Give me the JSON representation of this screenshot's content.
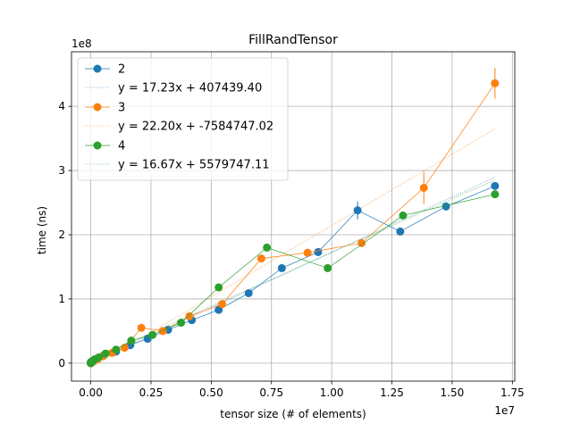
{
  "chart_data": {
    "type": "line",
    "title": "FillRandTensor",
    "xlabel": "tensor size (# of elements)",
    "ylabel": "time (ns)",
    "x_scale_label": "1e7",
    "y_scale_label": "1e8",
    "xlim": [
      -800000,
      17600000
    ],
    "ylim": [
      -28000000,
      485000000
    ],
    "x_ticks": [
      0,
      2500000,
      5000000,
      7500000,
      10000000,
      12500000,
      15000000,
      17500000
    ],
    "x_tick_labels": [
      "0.00",
      "0.25",
      "0.50",
      "0.75",
      "1.00",
      "1.25",
      "1.50",
      "1.75"
    ],
    "y_ticks": [
      0,
      100000000,
      200000000,
      300000000,
      400000000
    ],
    "y_tick_labels": [
      "0",
      "1",
      "2",
      "3",
      "4"
    ],
    "grid": true,
    "legend_position": "top-left",
    "series": [
      {
        "name": "2",
        "color": "#1f77b4",
        "fit_label": "y = 17.23x + 407439.40",
        "fit": {
          "slope": 17.23,
          "intercept": 407439.4
        },
        "x": [
          4,
          16,
          64,
          256,
          1024,
          4096,
          16384,
          65536,
          262144,
          524288,
          1048576,
          1638400,
          2359296,
          3211264,
          4194304,
          5308416,
          6553600,
          7929856,
          9437184,
          11075584,
          12845056,
          14745600,
          16777216
        ],
        "y": [
          100000,
          200000,
          250000,
          500000,
          1000000,
          1500000,
          2000000,
          3000000,
          7000000,
          12000000,
          18000000,
          28000000,
          38000000,
          52000000,
          67000000,
          83000000,
          109000000,
          148000000,
          173000000,
          238000000,
          205000000,
          244000000,
          276000000
        ],
        "err": [
          0,
          0,
          0,
          0,
          0,
          0,
          0,
          0,
          0,
          0,
          0,
          0,
          0,
          0,
          0,
          0,
          0,
          0,
          0,
          14000000,
          0,
          0,
          0
        ]
      },
      {
        "name": "3",
        "color": "#ff7f0e",
        "fit_label": "y = 22.20x + -7584747.02",
        "fit": {
          "slope": 22.2,
          "intercept": -7584747.02
        },
        "x": [
          27,
          512,
          4096,
          32768,
          110592,
          262144,
          512000,
          884736,
          1404928,
          2097152,
          2985984,
          4096000,
          5451776,
          7077888,
          8998912,
          11239424,
          13824000,
          16777216
        ],
        "y": [
          100000,
          200000,
          500000,
          1500000,
          3000000,
          6000000,
          11000000,
          16000000,
          24000000,
          55000000,
          50000000,
          73000000,
          92000000,
          163000000,
          172000000,
          187000000,
          273000000,
          436000000
        ],
        "err": [
          0,
          0,
          0,
          0,
          0,
          0,
          0,
          0,
          0,
          0,
          0,
          0,
          0,
          0,
          0,
          0,
          25000000,
          24000000
        ]
      },
      {
        "name": "4",
        "color": "#2ca02c",
        "fit_label": "y = 16.67x + 5579747.11",
        "fit": {
          "slope": 16.67,
          "intercept": 5579747.11
        },
        "x": [
          16,
          256,
          1296,
          4096,
          10000,
          20736,
          38416,
          65536,
          104976,
          160000,
          331776,
          614656,
          1048576,
          1679616,
          2560000,
          3748096,
          5308416,
          7311616,
          9834496,
          12960000,
          16777216
        ],
        "y": [
          100000,
          200000,
          300000,
          500000,
          800000,
          1200000,
          1800000,
          2500000,
          4000000,
          6000000,
          9000000,
          15000000,
          21000000,
          35000000,
          44000000,
          63000000,
          118000000,
          180000000,
          148000000,
          230000000,
          263000000
        ],
        "err": [
          0,
          0,
          0,
          0,
          0,
          0,
          0,
          0,
          0,
          0,
          0,
          0,
          0,
          0,
          0,
          0,
          0,
          0,
          0,
          0,
          0
        ]
      }
    ]
  }
}
